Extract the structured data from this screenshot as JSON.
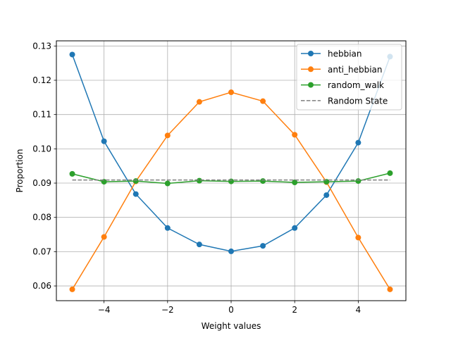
{
  "chart_data": {
    "type": "line",
    "xlabel": "Weight values",
    "ylabel": "Proportion",
    "xlim": [
      -5.5,
      5.5
    ],
    "ylim": [
      0.0557,
      0.1315
    ],
    "x_ticks": [
      -4,
      -2,
      0,
      2,
      4
    ],
    "x_tick_labels": [
      "−4",
      "−2",
      "0",
      "2",
      "4"
    ],
    "y_ticks": [
      0.06,
      0.07,
      0.08,
      0.09,
      0.1,
      0.11,
      0.12,
      0.13
    ],
    "y_tick_labels": [
      "0.06",
      "0.07",
      "0.08",
      "0.09",
      "0.10",
      "0.11",
      "0.12",
      "0.13"
    ],
    "grid": true,
    "legend_position": "top-right",
    "x": [
      -5,
      -4,
      -3,
      -2,
      -1,
      0,
      1,
      2,
      3,
      4,
      5
    ],
    "series": [
      {
        "name": "hebbian",
        "color": "#1f77b4",
        "style": "solid-marker",
        "values": [
          0.1275,
          0.1022,
          0.0868,
          0.0769,
          0.0721,
          0.0701,
          0.0717,
          0.0769,
          0.0865,
          0.1018,
          0.1269
        ]
      },
      {
        "name": "anti_hebbian",
        "color": "#ff7f0e",
        "style": "solid-marker",
        "values": [
          0.059,
          0.0743,
          0.0905,
          0.1039,
          0.1137,
          0.1165,
          0.1139,
          0.1041,
          0.0903,
          0.0741,
          0.059
        ]
      },
      {
        "name": "random_walk",
        "color": "#2ca02c",
        "style": "solid-marker",
        "values": [
          0.0927,
          0.0904,
          0.0906,
          0.0899,
          0.0907,
          0.0905,
          0.0906,
          0.0902,
          0.0904,
          0.0906,
          0.0929
        ]
      },
      {
        "name": "Random State",
        "color": "#7f7f7f",
        "style": "dashed",
        "values": [
          0.0909,
          0.0909,
          0.0909,
          0.0909,
          0.0909,
          0.0909,
          0.0909,
          0.0909,
          0.0909,
          0.0909,
          0.0909
        ]
      }
    ]
  }
}
